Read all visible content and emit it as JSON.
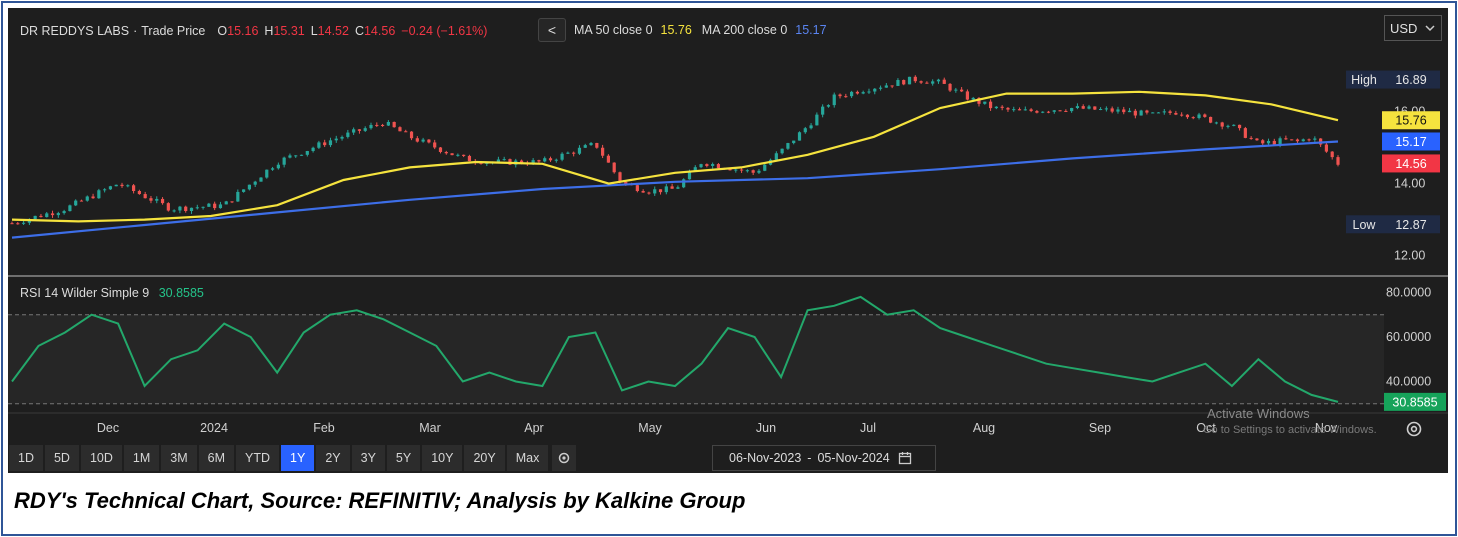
{
  "header": {
    "symbol": "DR REDDYS LABS",
    "separator": "·",
    "series_type": "Trade Price",
    "o_label": "O",
    "o_value": "15.16",
    "h_label": "H",
    "h_value": "15.31",
    "l_label": "L",
    "l_value": "14.52",
    "c_label": "C",
    "c_value": "14.56",
    "change": "−0.24 (−1.61%)",
    "ma50_label": "MA 50 close 0",
    "ma50_value": "15.76",
    "ma200_label": "MA 200 close 0",
    "ma200_value": "15.17",
    "chevron": "<"
  },
  "currency": {
    "label": "USD",
    "icon": "chevron-down-icon"
  },
  "rsi": {
    "label": "RSI 14 Wilder Simple 9",
    "value": "30.8585"
  },
  "timeframes": [
    "1D",
    "5D",
    "10D",
    "1M",
    "3M",
    "6M",
    "YTD",
    "1Y",
    "2Y",
    "3Y",
    "5Y",
    "10Y",
    "20Y",
    "Max"
  ],
  "active_timeframe": "1Y",
  "date_range": {
    "from": "06-Nov-2023",
    "sep": "-",
    "to": "05-Nov-2024"
  },
  "watermark": {
    "line1": "Activate Windows",
    "line2": "Go to Settings to activate Windows."
  },
  "caption": "RDY's Technical Chart, Source: REFINITIV; Analysis by Kalkine Group",
  "colors": {
    "up": "#26a69a",
    "down": "#ef5350",
    "ma50": "#f5e33e",
    "ma200": "#3d6ee8",
    "rsi": "#23a86b",
    "background": "#1e1e1e"
  },
  "chart_data": [
    {
      "type": "line",
      "title": "DR REDDYS LABS · Trade Price",
      "x_ticks": [
        "Dec",
        "2024",
        "Feb",
        "Mar",
        "Apr",
        "May",
        "Jun",
        "Jul",
        "Aug",
        "Sep",
        "Oct",
        "Nov"
      ],
      "y_ticks": [
        "12.00",
        "14.00",
        "16.00"
      ],
      "ylim": [
        11.6,
        17.6
      ],
      "price_labels": {
        "high_label": "High",
        "high": "16.89",
        "ma50": "15.76",
        "ma200": "15.17",
        "last": "14.56",
        "low_label": "Low",
        "low": "12.87"
      },
      "series": [
        {
          "name": "MA 50 close 0",
          "x": [
            0,
            5,
            10,
            15,
            20,
            25,
            30,
            35,
            40,
            45,
            50,
            55,
            60,
            65,
            70,
            75,
            80,
            85,
            90,
            95,
            100
          ],
          "values": [
            13.0,
            12.95,
            13.0,
            13.1,
            13.4,
            14.1,
            14.45,
            14.6,
            14.55,
            14.0,
            14.3,
            14.45,
            14.8,
            15.3,
            16.1,
            16.5,
            16.5,
            16.55,
            16.45,
            16.2,
            15.76
          ]
        },
        {
          "name": "MA 200 close 0",
          "x": [
            0,
            10,
            20,
            30,
            40,
            50,
            60,
            70,
            80,
            90,
            100
          ],
          "values": [
            12.5,
            12.85,
            13.2,
            13.55,
            13.85,
            14.05,
            14.15,
            14.4,
            14.7,
            14.95,
            15.17
          ]
        },
        {
          "name": "Trade Price",
          "x": [
            0,
            4,
            8,
            12,
            16,
            20,
            24,
            28,
            30,
            34,
            36,
            40,
            44,
            46,
            48,
            50,
            52,
            56,
            58,
            60,
            62,
            64,
            68,
            70,
            72,
            74,
            76,
            80,
            84,
            86,
            88,
            90,
            92,
            94,
            96,
            97,
            98,
            100
          ],
          "values": [
            12.9,
            13.3,
            14.0,
            13.3,
            13.4,
            14.6,
            15.2,
            15.7,
            15.3,
            14.7,
            14.6,
            14.6,
            15.1,
            14.0,
            13.8,
            13.85,
            14.6,
            14.3,
            14.9,
            15.6,
            16.4,
            16.6,
            16.9,
            16.8,
            16.4,
            16.1,
            16.0,
            16.1,
            16.0,
            15.9,
            16.0,
            15.8,
            15.6,
            15.1,
            15.2,
            15.16,
            15.31,
            14.56
          ]
        }
      ]
    },
    {
      "type": "line",
      "title": "RSI 14 Wilder Simple 9",
      "y_ticks": [
        "40.0000",
        "60.0000",
        "80.0000"
      ],
      "ylim": [
        29,
        82
      ],
      "reference_levels": [
        70,
        30
      ],
      "series": [
        {
          "name": "RSI 14 Wilder Simple 9",
          "x": [
            0,
            2,
            4,
            6,
            8,
            10,
            12,
            14,
            16,
            18,
            20,
            22,
            24,
            26,
            28,
            30,
            32,
            34,
            36,
            38,
            40,
            42,
            44,
            46,
            48,
            50,
            52,
            54,
            56,
            58,
            60,
            62,
            64,
            66,
            68,
            70,
            72,
            74,
            76,
            78,
            80,
            82,
            84,
            86,
            88,
            90,
            92,
            94,
            96,
            98,
            100
          ],
          "values": [
            40,
            56,
            62,
            70,
            66,
            38,
            50,
            54,
            66,
            60,
            44,
            62,
            70,
            72,
            68,
            62,
            56,
            40,
            44,
            40,
            38,
            60,
            62,
            36,
            40,
            38,
            48,
            64,
            60,
            42,
            72,
            74,
            78,
            70,
            72,
            64,
            60,
            56,
            52,
            48,
            46,
            44,
            42,
            40,
            44,
            48,
            38,
            50,
            40,
            34,
            30.8585
          ]
        }
      ]
    }
  ]
}
